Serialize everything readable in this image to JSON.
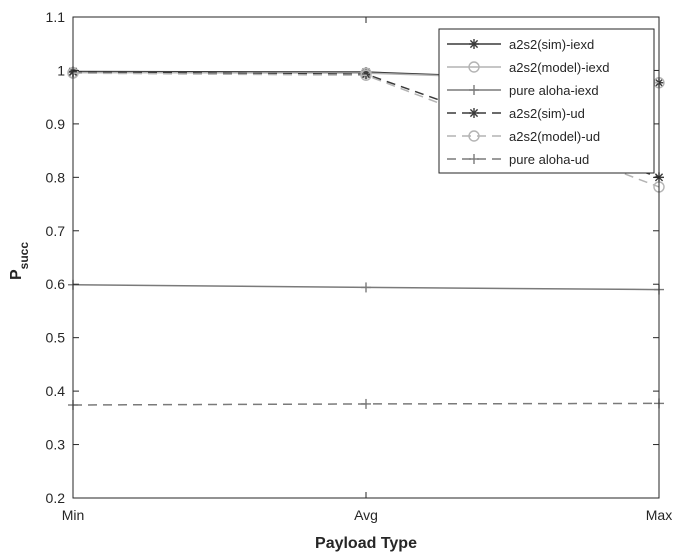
{
  "chart_data": {
    "type": "line",
    "categories": [
      "Min",
      "Avg",
      "Max"
    ],
    "xlabel": "Payload Type",
    "ylabel": "P",
    "ylabel_subscript": "succ",
    "ylim": [
      0.2,
      1.1
    ],
    "yticks": [
      0.2,
      0.3,
      0.4,
      0.5,
      0.6,
      0.7,
      0.8,
      0.9,
      1,
      1.1
    ],
    "grid": false,
    "legend_position": "top-right",
    "series": [
      {
        "name": "a2s2(sim)-iexd",
        "values": [
          0.998,
          0.997,
          0.977
        ],
        "color": "#3a3a3a",
        "dash": "solid",
        "marker": "asterisk"
      },
      {
        "name": "a2s2(model)-iexd",
        "values": [
          0.996,
          0.995,
          0.977
        ],
        "color": "#b4b4b4",
        "dash": "solid",
        "marker": "circle"
      },
      {
        "name": "pure aloha-iexd",
        "values": [
          0.599,
          0.594,
          0.59
        ],
        "color": "#7a7a7a",
        "dash": "solid",
        "marker": "plus"
      },
      {
        "name": "a2s2(sim)-ud",
        "values": [
          0.997,
          0.993,
          0.8
        ],
        "color": "#3a3a3a",
        "dash": "dashed",
        "marker": "asterisk"
      },
      {
        "name": "a2s2(model)-ud",
        "values": [
          0.995,
          0.991,
          0.782
        ],
        "color": "#b4b4b4",
        "dash": "dashed",
        "marker": "circle"
      },
      {
        "name": "pure aloha-ud",
        "values": [
          0.374,
          0.376,
          0.377
        ],
        "color": "#7a7a7a",
        "dash": "dashed",
        "marker": "plus"
      }
    ]
  }
}
